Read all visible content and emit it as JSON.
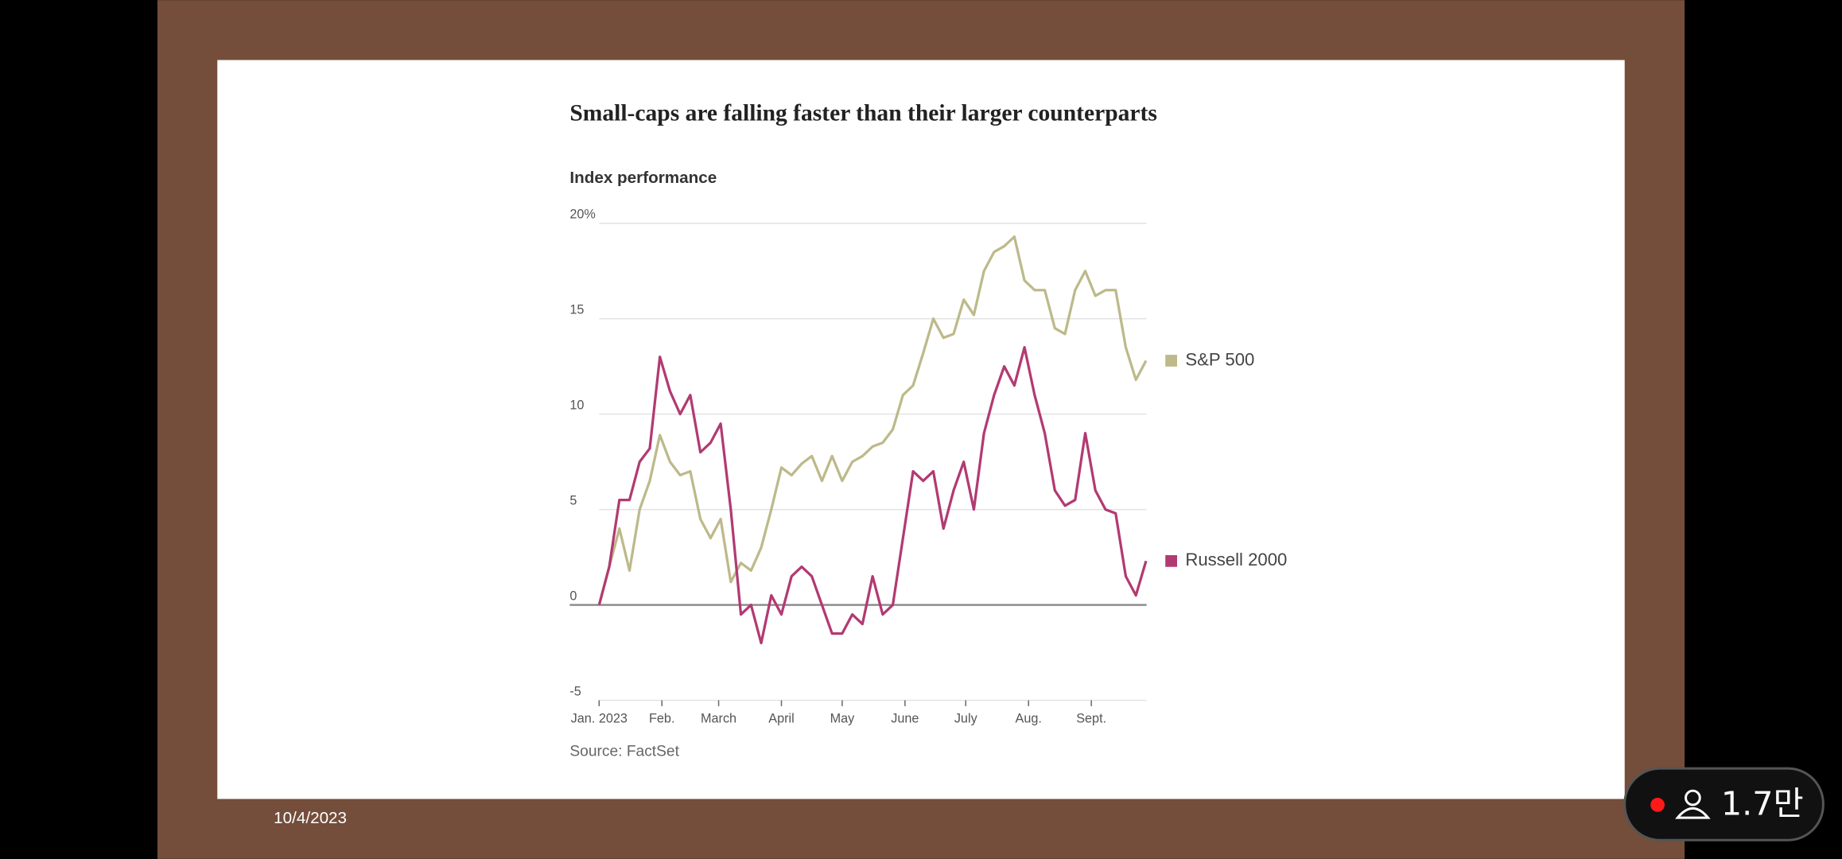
{
  "screen": {
    "date": "10/4/2023",
    "viewer_count": "1.7만"
  },
  "chart_data": {
    "type": "line",
    "title": "Small-caps are falling faster than their larger counterparts",
    "subtitle": "Index performance",
    "source": "Source: FactSet",
    "x": [
      0,
      5,
      10,
      15,
      20,
      25,
      30,
      35,
      40,
      45,
      50,
      55,
      60,
      65,
      70,
      75,
      80,
      85,
      90,
      95,
      100,
      105,
      110,
      115,
      120,
      125,
      130,
      135,
      140,
      145,
      150,
      155,
      160,
      165,
      170,
      175,
      180,
      185,
      190,
      195,
      200,
      205,
      210,
      215,
      220,
      225,
      230,
      235,
      240,
      245,
      250,
      255,
      260,
      265,
      270
    ],
    "xlim": [
      -14.5,
      272
    ],
    "xticks": [
      {
        "value": 0,
        "label": "Jan. 2023"
      },
      {
        "value": 31,
        "label": "Feb."
      },
      {
        "value": 59,
        "label": "March"
      },
      {
        "value": 90,
        "label": "April"
      },
      {
        "value": 120,
        "label": "May"
      },
      {
        "value": 151,
        "label": "June"
      },
      {
        "value": 181,
        "label": "July"
      },
      {
        "value": 212,
        "label": "Aug."
      },
      {
        "value": 243,
        "label": "Sept."
      }
    ],
    "ylim": [
      -5,
      20
    ],
    "yticks": [
      {
        "value": 20,
        "label": "20%"
      },
      15,
      10,
      5,
      0,
      -5
    ],
    "grid": true,
    "legend": "end-of-line",
    "series": [
      {
        "name": "S&P 500",
        "color": "#bdb98a",
        "values": [
          0,
          2,
          4,
          1.8,
          5,
          6.5,
          8.9,
          7.5,
          6.8,
          7,
          4.5,
          3.5,
          4.5,
          1.2,
          2.2,
          1.8,
          3,
          5,
          7.2,
          6.8,
          7.4,
          7.8,
          6.5,
          7.8,
          6.5,
          7.5,
          7.8,
          8.3,
          8.5,
          9.2,
          11,
          11.5,
          13.2,
          15,
          14,
          14.2,
          16,
          15.2,
          17.5,
          18.5,
          18.8,
          19.3,
          17,
          16.5,
          16.5,
          14.5,
          14.2,
          16.5,
          17.5,
          16.2,
          16.5,
          16.5,
          13.5,
          11.8,
          12.8
        ]
      },
      {
        "name": "Russell 2000",
        "color": "#b23a72",
        "values": [
          0,
          2,
          5.5,
          5.5,
          7.5,
          8.2,
          13,
          11.2,
          10,
          11,
          8,
          8.5,
          9.5,
          5,
          -0.5,
          0,
          -2,
          0.5,
          -0.5,
          1.5,
          2,
          1.5,
          0,
          -1.5,
          -1.5,
          -0.5,
          -1,
          1.5,
          -0.5,
          0,
          3.5,
          7,
          6.5,
          7,
          4,
          6,
          7.5,
          5,
          9,
          11,
          12.5,
          11.5,
          13.5,
          11,
          9,
          6,
          5.2,
          5.5,
          9,
          6,
          5,
          4.8,
          1.5,
          0.5,
          2.3
        ]
      }
    ]
  }
}
